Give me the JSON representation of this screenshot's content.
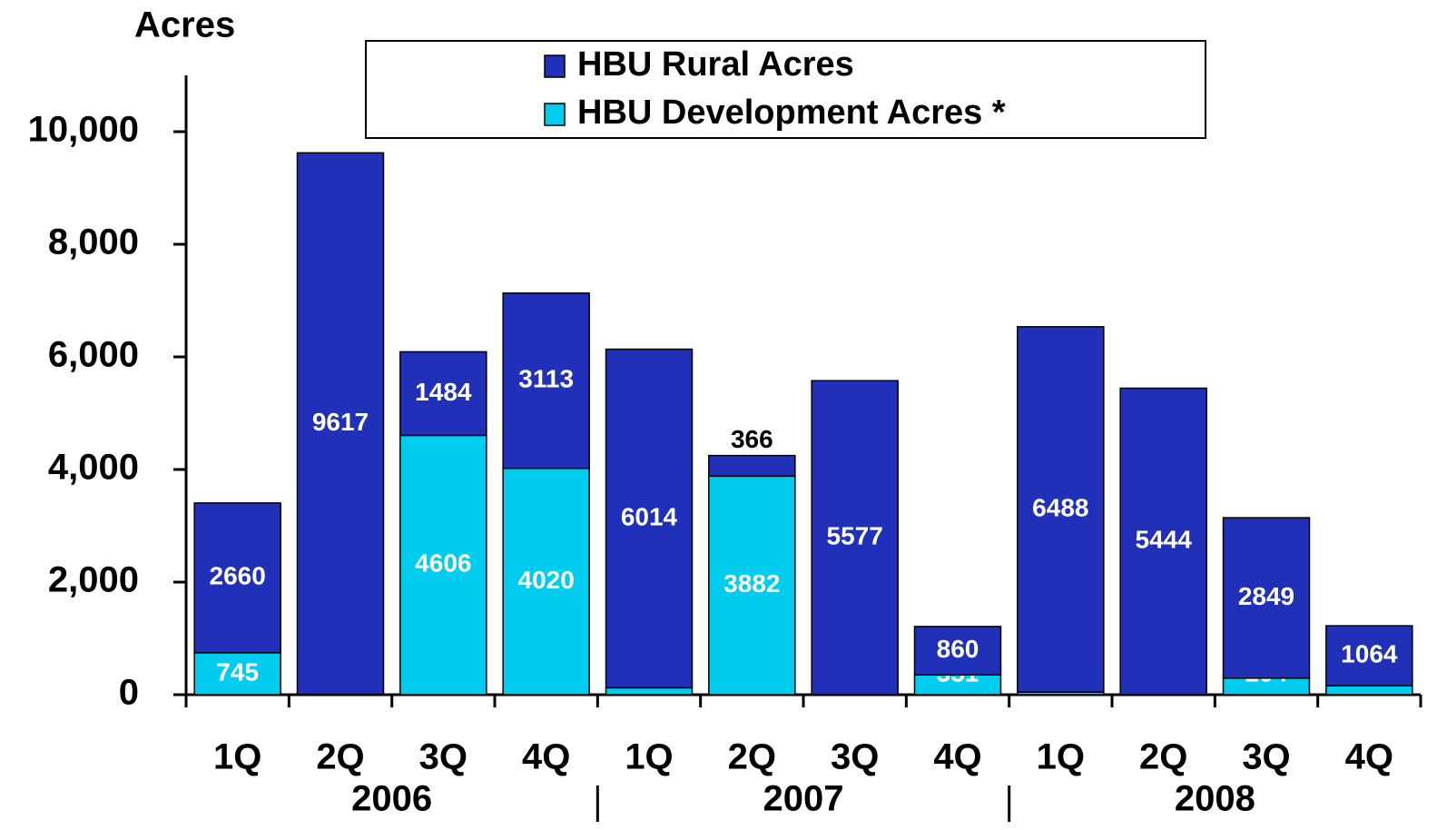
{
  "chart_data": {
    "type": "stacked-bar",
    "y_axis_label": "Acres",
    "categories": [
      "1Q",
      "2Q",
      "3Q",
      "4Q",
      "1Q",
      "2Q",
      "3Q",
      "4Q",
      "1Q",
      "2Q",
      "3Q",
      "4Q"
    ],
    "groups": [
      "2006",
      "2007",
      "2008"
    ],
    "series": [
      {
        "name": "HBU Development Acres *",
        "color": "#00ccee",
        "values": [
          745,
          7,
          4606,
          4020,
          123,
          3882,
          null,
          351,
          47,
          null,
          294,
          160
        ]
      },
      {
        "name": "HBU Rural Acres",
        "color": "#2030b8",
        "values": [
          2660,
          9617,
          1484,
          3113,
          6014,
          366,
          5577,
          860,
          6488,
          5444,
          2849,
          1064
        ]
      }
    ],
    "ylim": [
      0,
      11000
    ],
    "yticks": [
      0,
      {
        "value": 2000,
        "label": "2,000"
      },
      {
        "value": 4000,
        "label": "4,000"
      },
      {
        "value": 6000,
        "label": "6,000"
      },
      {
        "value": 8000,
        "label": "8,000"
      },
      {
        "value": 10000,
        "label": "10,000"
      }
    ]
  }
}
